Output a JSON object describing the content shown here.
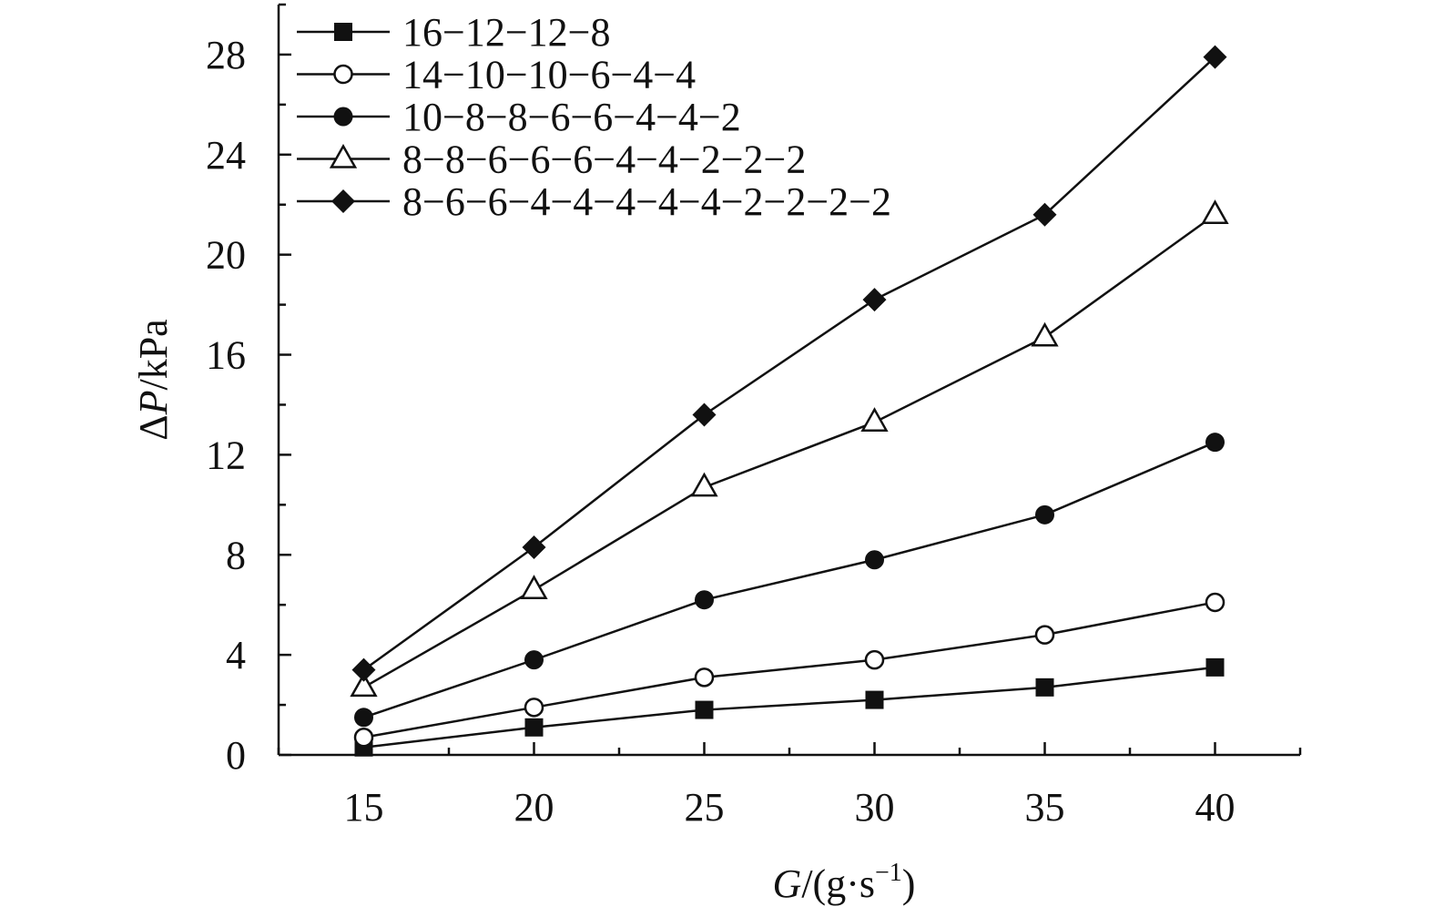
{
  "chart_data": {
    "type": "line",
    "x": [
      15,
      20,
      25,
      30,
      35,
      40
    ],
    "xlim": [
      12.5,
      42.5
    ],
    "ylim": [
      0,
      30
    ],
    "xticks": [
      15,
      20,
      25,
      30,
      35,
      40
    ],
    "yticks": [
      0,
      4,
      8,
      12,
      16,
      20,
      24,
      28
    ],
    "xlabel": {
      "italic": "G",
      "rest": "/(g·s",
      "sup": "−1",
      "close": ")"
    },
    "ylabel": {
      "prefix": "Δ",
      "italic": "P",
      "rest": "/kPa"
    },
    "legend_position": "top-left",
    "grid": false,
    "series": [
      {
        "name": "16−12−12−8",
        "marker": "square-filled",
        "values": [
          0.3,
          1.1,
          1.8,
          2.2,
          2.7,
          3.5
        ]
      },
      {
        "name": "14−10−10−6−4−4",
        "marker": "circle-open",
        "values": [
          0.7,
          1.9,
          3.1,
          3.8,
          4.8,
          6.1
        ]
      },
      {
        "name": "10−8−8−6−6−4−4−2",
        "marker": "circle-filled",
        "values": [
          1.5,
          3.8,
          6.2,
          7.8,
          9.6,
          12.5
        ]
      },
      {
        "name": "8−8−6−6−6−4−4−2−2−2",
        "marker": "triangle-open",
        "values": [
          2.7,
          6.6,
          10.7,
          13.3,
          16.7,
          21.6
        ]
      },
      {
        "name": "8−6−6−4−4−4−4−4−2−2−2−2",
        "marker": "diamond-filled",
        "values": [
          3.4,
          8.3,
          13.6,
          18.2,
          21.6,
          27.9
        ]
      }
    ]
  }
}
